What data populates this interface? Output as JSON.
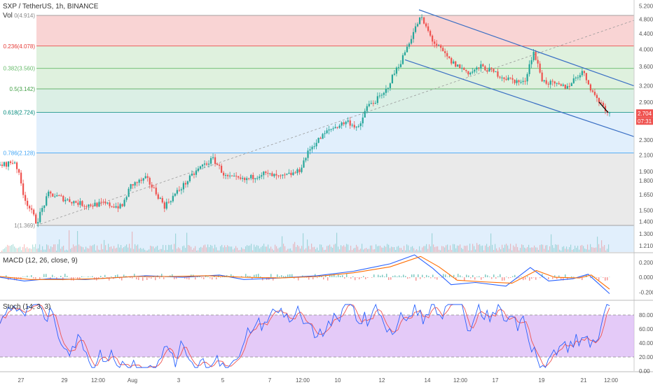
{
  "header": {
    "title": "SXP / TetherUS, 1h, BINANCE",
    "vol_label": "Vol"
  },
  "price_tags": {
    "last": "2.704",
    "countdown": "07:31"
  },
  "panes": {
    "macd": {
      "label": "MACD (12, 26, close, 9)",
      "y_ticks": [
        "0.200",
        "0.000",
        "-0.200"
      ]
    },
    "stoch": {
      "label": "Stoch (14, 3, 3)",
      "y_ticks": [
        "80.00",
        "60.00",
        "40.00",
        "20.00",
        "0.00"
      ]
    }
  },
  "colors": {
    "up": "#26a69a",
    "down": "#ef5350",
    "channel": "#3a6fc4",
    "macd_line": "#2962ff",
    "signal_line": "#ff6d00",
    "stoch_k": "#2962ff",
    "stoch_d": "#ef5350",
    "stoch_band": "#d9b3f5"
  },
  "chart_data": [
    {
      "type": "candlestick",
      "title": "SXP / TetherUS, 1h, BINANCE",
      "y_scale": "log",
      "ylim": [
        1.18,
        5.3
      ],
      "y_ticks": [
        "5.200",
        "4.800",
        "4.400",
        "4.000",
        "3.600",
        "3.200",
        "2.900",
        "2.600",
        "2.300",
        "2.100",
        "1.900",
        "1.800",
        "1.650",
        "1.500",
        "1.400",
        "1.300",
        "1.210"
      ],
      "x_ticks": [
        "27",
        "29",
        "12:00",
        "Aug",
        "3",
        "5",
        "7",
        "12:00",
        "10",
        "12",
        "14",
        "12:00",
        "17",
        "19",
        "21",
        "12:00"
      ],
      "fib_levels": [
        {
          "label": "0(4.914)",
          "ratio": 0,
          "price": 4.914,
          "color": "#888888",
          "fill": "#f7c5c5"
        },
        {
          "label": "0.236(4.078)",
          "ratio": 0.236,
          "price": 4.078,
          "color": "#e53935",
          "fill": "#d4ecd3"
        },
        {
          "label": "0.382(3.560)",
          "ratio": 0.382,
          "price": 3.56,
          "color": "#66bb6a",
          "fill": "#d4ecd3"
        },
        {
          "label": "0.5(3.142)",
          "ratio": 0.5,
          "price": 3.142,
          "color": "#43a047",
          "fill": "#cfe9dc"
        },
        {
          "label": "0.618(2.724)",
          "ratio": 0.618,
          "price": 2.724,
          "color": "#00897b",
          "fill": "#d7e9fb"
        },
        {
          "label": "0.786(2.128)",
          "ratio": 0.786,
          "price": 2.128,
          "color": "#42a5f5",
          "fill": "#e3e3e3"
        },
        {
          "label": "1(1.369)",
          "ratio": 1,
          "price": 1.369,
          "color": "#888888",
          "fill": "#d7e9fb"
        }
      ],
      "price_path": [
        [
          0,
          1.97
        ],
        [
          0.025,
          2.02
        ],
        [
          0.04,
          1.62
        ],
        [
          0.06,
          1.39
        ],
        [
          0.08,
          1.66
        ],
        [
          0.11,
          1.6
        ],
        [
          0.14,
          1.55
        ],
        [
          0.17,
          1.56
        ],
        [
          0.2,
          1.53
        ],
        [
          0.215,
          1.75
        ],
        [
          0.24,
          1.82
        ],
        [
          0.27,
          1.54
        ],
        [
          0.3,
          1.74
        ],
        [
          0.33,
          1.96
        ],
        [
          0.35,
          2.05
        ],
        [
          0.37,
          1.84
        ],
        [
          0.4,
          1.8
        ],
        [
          0.43,
          1.88
        ],
        [
          0.46,
          1.83
        ],
        [
          0.49,
          1.9
        ],
        [
          0.51,
          2.2
        ],
        [
          0.54,
          2.45
        ],
        [
          0.57,
          2.58
        ],
        [
          0.59,
          2.46
        ],
        [
          0.6,
          2.8
        ],
        [
          0.63,
          3.04
        ],
        [
          0.66,
          3.78
        ],
        [
          0.69,
          4.86
        ],
        [
          0.71,
          4.2
        ],
        [
          0.74,
          3.7
        ],
        [
          0.77,
          3.46
        ],
        [
          0.79,
          3.6
        ],
        [
          0.83,
          3.35
        ],
        [
          0.86,
          3.25
        ],
        [
          0.875,
          3.94
        ],
        [
          0.89,
          3.3
        ],
        [
          0.915,
          3.2
        ],
        [
          0.93,
          3.18
        ],
        [
          0.955,
          3.5
        ],
        [
          0.975,
          3.02
        ],
        [
          1.0,
          2.7
        ]
      ],
      "last_price": 2.704
    },
    {
      "type": "line",
      "title": "MACD (12, 26, close, 9)",
      "ylim": [
        -0.3,
        0.32
      ],
      "series": [
        {
          "name": "",
          "color": "#2962ff",
          "points": [
            [
              0,
              0.0
            ],
            [
              0.04,
              -0.05
            ],
            [
              0.08,
              -0.02
            ],
            [
              0.14,
              -0.03
            ],
            [
              0.2,
              0.0
            ],
            [
              0.24,
              0.02
            ],
            [
              0.3,
              0.0
            ],
            [
              0.36,
              0.03
            ],
            [
              0.4,
              -0.03
            ],
            [
              0.46,
              -0.01
            ],
            [
              0.52,
              0.02
            ],
            [
              0.58,
              0.08
            ],
            [
              0.64,
              0.18
            ],
            [
              0.68,
              0.3
            ],
            [
              0.71,
              0.12
            ],
            [
              0.74,
              -0.1
            ],
            [
              0.78,
              -0.07
            ],
            [
              0.83,
              -0.12
            ],
            [
              0.87,
              0.13
            ],
            [
              0.9,
              -0.05
            ],
            [
              0.94,
              -0.02
            ],
            [
              0.965,
              0.04
            ],
            [
              1.0,
              -0.22
            ]
          ]
        },
        {
          "name": "",
          "color": "#ff6d00",
          "points": [
            [
              0,
              0.01
            ],
            [
              0.05,
              -0.03
            ],
            [
              0.1,
              -0.03
            ],
            [
              0.16,
              -0.02
            ],
            [
              0.22,
              0.01
            ],
            [
              0.28,
              0.01
            ],
            [
              0.34,
              0.02
            ],
            [
              0.4,
              0.0
            ],
            [
              0.46,
              -0.01
            ],
            [
              0.52,
              0.01
            ],
            [
              0.58,
              0.06
            ],
            [
              0.64,
              0.14
            ],
            [
              0.69,
              0.28
            ],
            [
              0.72,
              0.14
            ],
            [
              0.75,
              -0.04
            ],
            [
              0.79,
              -0.06
            ],
            [
              0.84,
              -0.08
            ],
            [
              0.88,
              0.09
            ],
            [
              0.91,
              0.0
            ],
            [
              0.95,
              -0.01
            ],
            [
              0.97,
              0.03
            ],
            [
              1.0,
              -0.16
            ]
          ]
        }
      ]
    },
    {
      "type": "line",
      "title": "Stoch (14, 3, 3)",
      "ylim": [
        0,
        100
      ],
      "bands": [
        20,
        80
      ]
    }
  ]
}
